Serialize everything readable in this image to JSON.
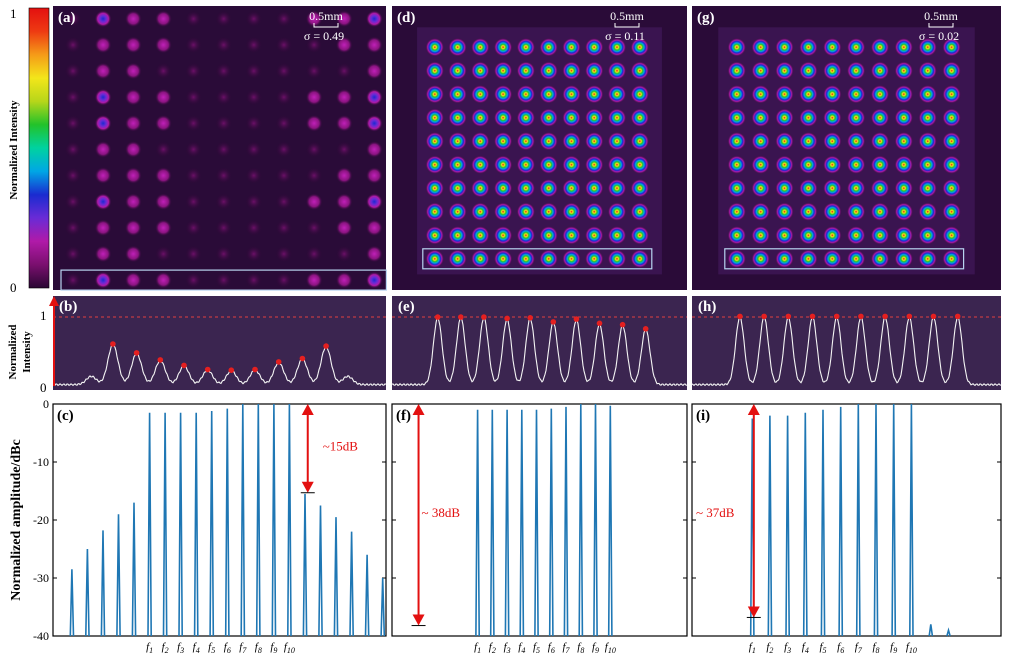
{
  "colorbar": {
    "label": "Normalized Intensity",
    "max": "1",
    "min": "0",
    "stops": [
      "#2a0733",
      "#7a0f6e",
      "#b01aa8",
      "#6a2bd6",
      "#1a2bd0",
      "#00a7e5",
      "#00d2a0",
      "#22c22a",
      "#b7d61a",
      "#f3e61a",
      "#f59b18",
      "#ee3a12",
      "#e31010"
    ]
  },
  "scalebar": {
    "label": "0.5mm"
  },
  "columns": [
    {
      "image_letter": "(a)",
      "sigma": "σ = 0.49",
      "profile_letter": "(b)",
      "spectrum_letter": "(c)",
      "peaks": [
        0.58,
        0.45,
        0.35,
        0.27,
        0.21,
        0.2,
        0.21,
        0.32,
        0.37,
        0.55
      ],
      "arrow_label": "~15dB",
      "grid_rows": 11,
      "grid_cols": 11,
      "uniform_grid": false
    },
    {
      "image_letter": "(d)",
      "sigma": "σ = 0.11",
      "profile_letter": "(e)",
      "spectrum_letter": "(f)",
      "peaks": [
        0.97,
        0.97,
        0.97,
        0.95,
        0.96,
        0.9,
        0.94,
        0.88,
        0.86,
        0.8
      ],
      "arrow_label": "~ 38dB",
      "grid_rows": 10,
      "grid_cols": 10,
      "uniform_grid": true
    },
    {
      "image_letter": "(g)",
      "sigma": "σ = 0.02",
      "profile_letter": "(h)",
      "spectrum_letter": "(i)",
      "peaks": [
        0.98,
        0.98,
        0.98,
        0.98,
        0.98,
        0.98,
        0.98,
        0.98,
        0.98,
        0.98
      ],
      "arrow_label": "~ 37dB",
      "grid_rows": 10,
      "grid_cols": 10,
      "uniform_grid": true
    }
  ],
  "profile_axis": {
    "ylabel_line1": "Normalized",
    "ylabel_line2": "Intensity",
    "tick_top": "1",
    "tick_bottom": "0"
  },
  "spectrum_axis": {
    "ylabel": "Normalized amplitude/dBc",
    "ticks": [
      "0",
      "-10",
      "-20",
      "-30",
      "-40"
    ]
  },
  "freq_label_base": "f",
  "freq_label_subs": [
    "1",
    "2",
    "3",
    "4",
    "5",
    "6",
    "7",
    "8",
    "9",
    "10"
  ],
  "chart_data": [
    {
      "type": "heatmap",
      "panel": "(a)",
      "annotation": "σ = 0.49",
      "scale": "0.5mm"
    },
    {
      "type": "heatmap",
      "panel": "(d)",
      "annotation": "σ = 0.11",
      "scale": "0.5mm"
    },
    {
      "type": "heatmap",
      "panel": "(g)",
      "annotation": "σ = 0.02",
      "scale": "0.5mm"
    },
    {
      "type": "line",
      "panel": "(b)",
      "ylabel": "Normalized Intensity",
      "ylim": [
        0,
        1
      ],
      "peak_values": [
        0.58,
        0.45,
        0.35,
        0.27,
        0.21,
        0.2,
        0.21,
        0.32,
        0.37,
        0.55
      ]
    },
    {
      "type": "line",
      "panel": "(e)",
      "ylabel": "Normalized Intensity",
      "ylim": [
        0,
        1
      ],
      "peak_values": [
        0.97,
        0.97,
        0.97,
        0.95,
        0.96,
        0.9,
        0.94,
        0.88,
        0.86,
        0.8
      ]
    },
    {
      "type": "line",
      "panel": "(h)",
      "ylabel": "Normalized Intensity",
      "ylim": [
        0,
        1
      ],
      "peak_values": [
        0.98,
        0.98,
        0.98,
        0.98,
        0.98,
        0.98,
        0.98,
        0.98,
        0.98,
        0.98
      ]
    },
    {
      "type": "bar",
      "panel": "(c)",
      "ylabel": "Normalized amplitude/dBc",
      "ylim": [
        -40,
        0
      ],
      "categories": [
        "f1",
        "f2",
        "f3",
        "f4",
        "f5",
        "f6",
        "f7",
        "f8",
        "f9",
        "f10"
      ],
      "values": [
        -1.5,
        -1.5,
        -1.5,
        -1.5,
        -1.2,
        -0.8,
        0,
        0,
        0,
        0
      ],
      "sidebands": [
        -45,
        -28.5,
        -25,
        -21.8,
        -19,
        -17,
        -15.5,
        -17.5,
        -19.5,
        -22,
        -26,
        -30
      ],
      "annotation": "~15dB"
    },
    {
      "type": "bar",
      "panel": "(f)",
      "ylabel": "Normalized amplitude/dBc",
      "ylim": [
        -40,
        0
      ],
      "categories": [
        "f1",
        "f2",
        "f3",
        "f4",
        "f5",
        "f6",
        "f7",
        "f8",
        "f9",
        "f10"
      ],
      "values": [
        -1,
        -1,
        -1,
        -1,
        -1,
        -0.8,
        -0.5,
        0,
        0,
        -0.3
      ],
      "annotation": "~ 38dB"
    },
    {
      "type": "bar",
      "panel": "(i)",
      "ylabel": "Normalized amplitude/dBc",
      "ylim": [
        -40,
        0
      ],
      "categories": [
        "f1",
        "f2",
        "f3",
        "f4",
        "f5",
        "f6",
        "f7",
        "f8",
        "f9",
        "f10"
      ],
      "values": [
        -2.5,
        -2,
        -2,
        -1.5,
        -1,
        -0.5,
        0,
        0,
        0,
        0
      ],
      "sidebands": [
        -38,
        -39
      ],
      "annotation": "~ 37dB"
    }
  ]
}
